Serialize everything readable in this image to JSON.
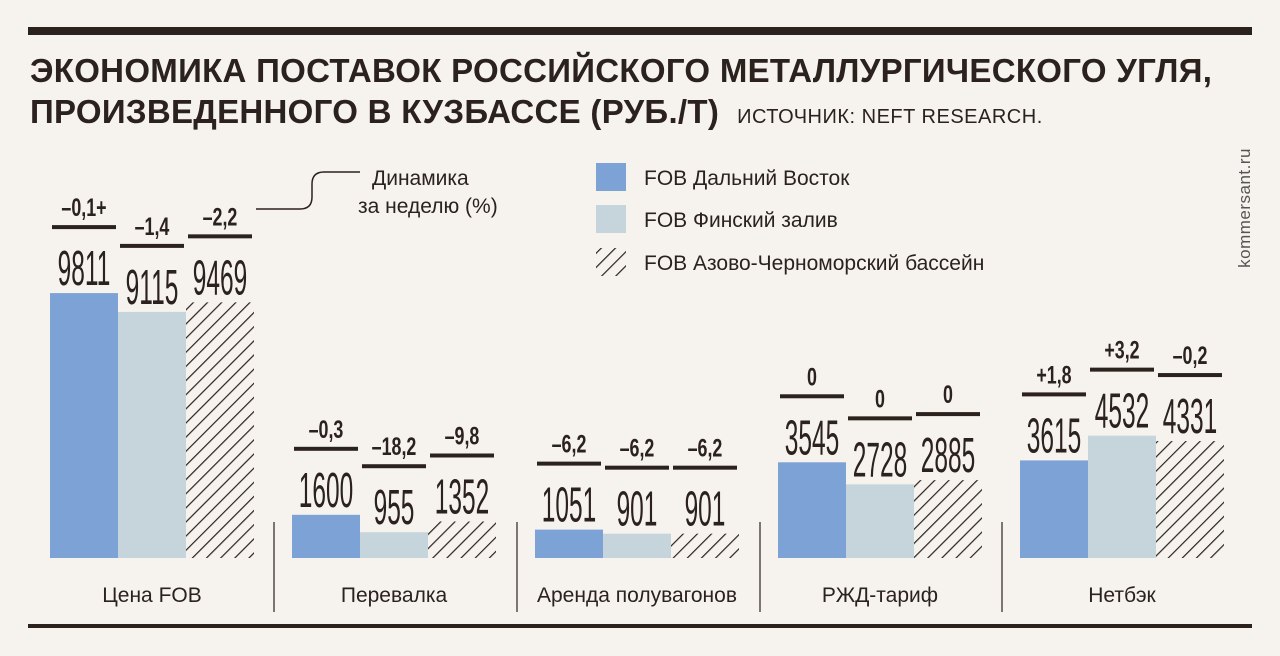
{
  "header": {
    "title_line1": "ЭКОНОМИКА ПОСТАВОК РОССИЙСКОГО МЕТАЛЛУРГИЧЕСКОГО УГЛЯ,",
    "title_line2": "ПРОИЗВЕДЕННОГО В КУЗБАССЕ (РУБ./Т)",
    "source": "ИСТОЧНИК: NEFT RESEARCH."
  },
  "watermark": "kommersant.ru",
  "colors": {
    "dark": "#2b211d",
    "far_east": "#7da2d6",
    "finnish_gulf": "#c6d4dc",
    "hatch": "#2b211d"
  },
  "chart_data": {
    "type": "bar",
    "title": "ЭКОНОМИКА ПОСТАВОК РОССИЙСКОГО МЕТАЛЛУРГИЧЕСКОГО УГЛЯ, ПРОИЗВЕДЕННОГО В КУЗБАССЕ (РУБ./Т)",
    "annotation": "Динамика\nза неделю (%)",
    "annotation_lines": [
      "Динамика",
      "за неделю (%)"
    ],
    "categories": [
      "Цена FOB",
      "Перевалка",
      "Аренда полувагонов",
      "РЖД-тариф",
      "Нетбэк"
    ],
    "ylim": [
      0,
      10000
    ],
    "series": [
      {
        "name": "FOB Дальний Восток",
        "style": "solid-blue",
        "values": [
          9811,
          1600,
          1051,
          3545,
          3615
        ],
        "change_labels": [
          "–0,1+",
          "–0,3",
          "–6,2",
          "0",
          "+1,8"
        ]
      },
      {
        "name": "FOB Финский залив",
        "style": "solid-grey",
        "values": [
          9115,
          955,
          901,
          2728,
          4532
        ],
        "change_labels": [
          "–1,4",
          "–18,2",
          "–6,2",
          "0",
          "+3,2"
        ]
      },
      {
        "name": "FOB Азово-Черноморский бассейн",
        "style": "hatched",
        "values": [
          9469,
          1352,
          901,
          2885,
          4331
        ],
        "change_labels": [
          "–2,2",
          "–9,8",
          "–6,2",
          "0",
          "–0,2"
        ]
      }
    ]
  }
}
